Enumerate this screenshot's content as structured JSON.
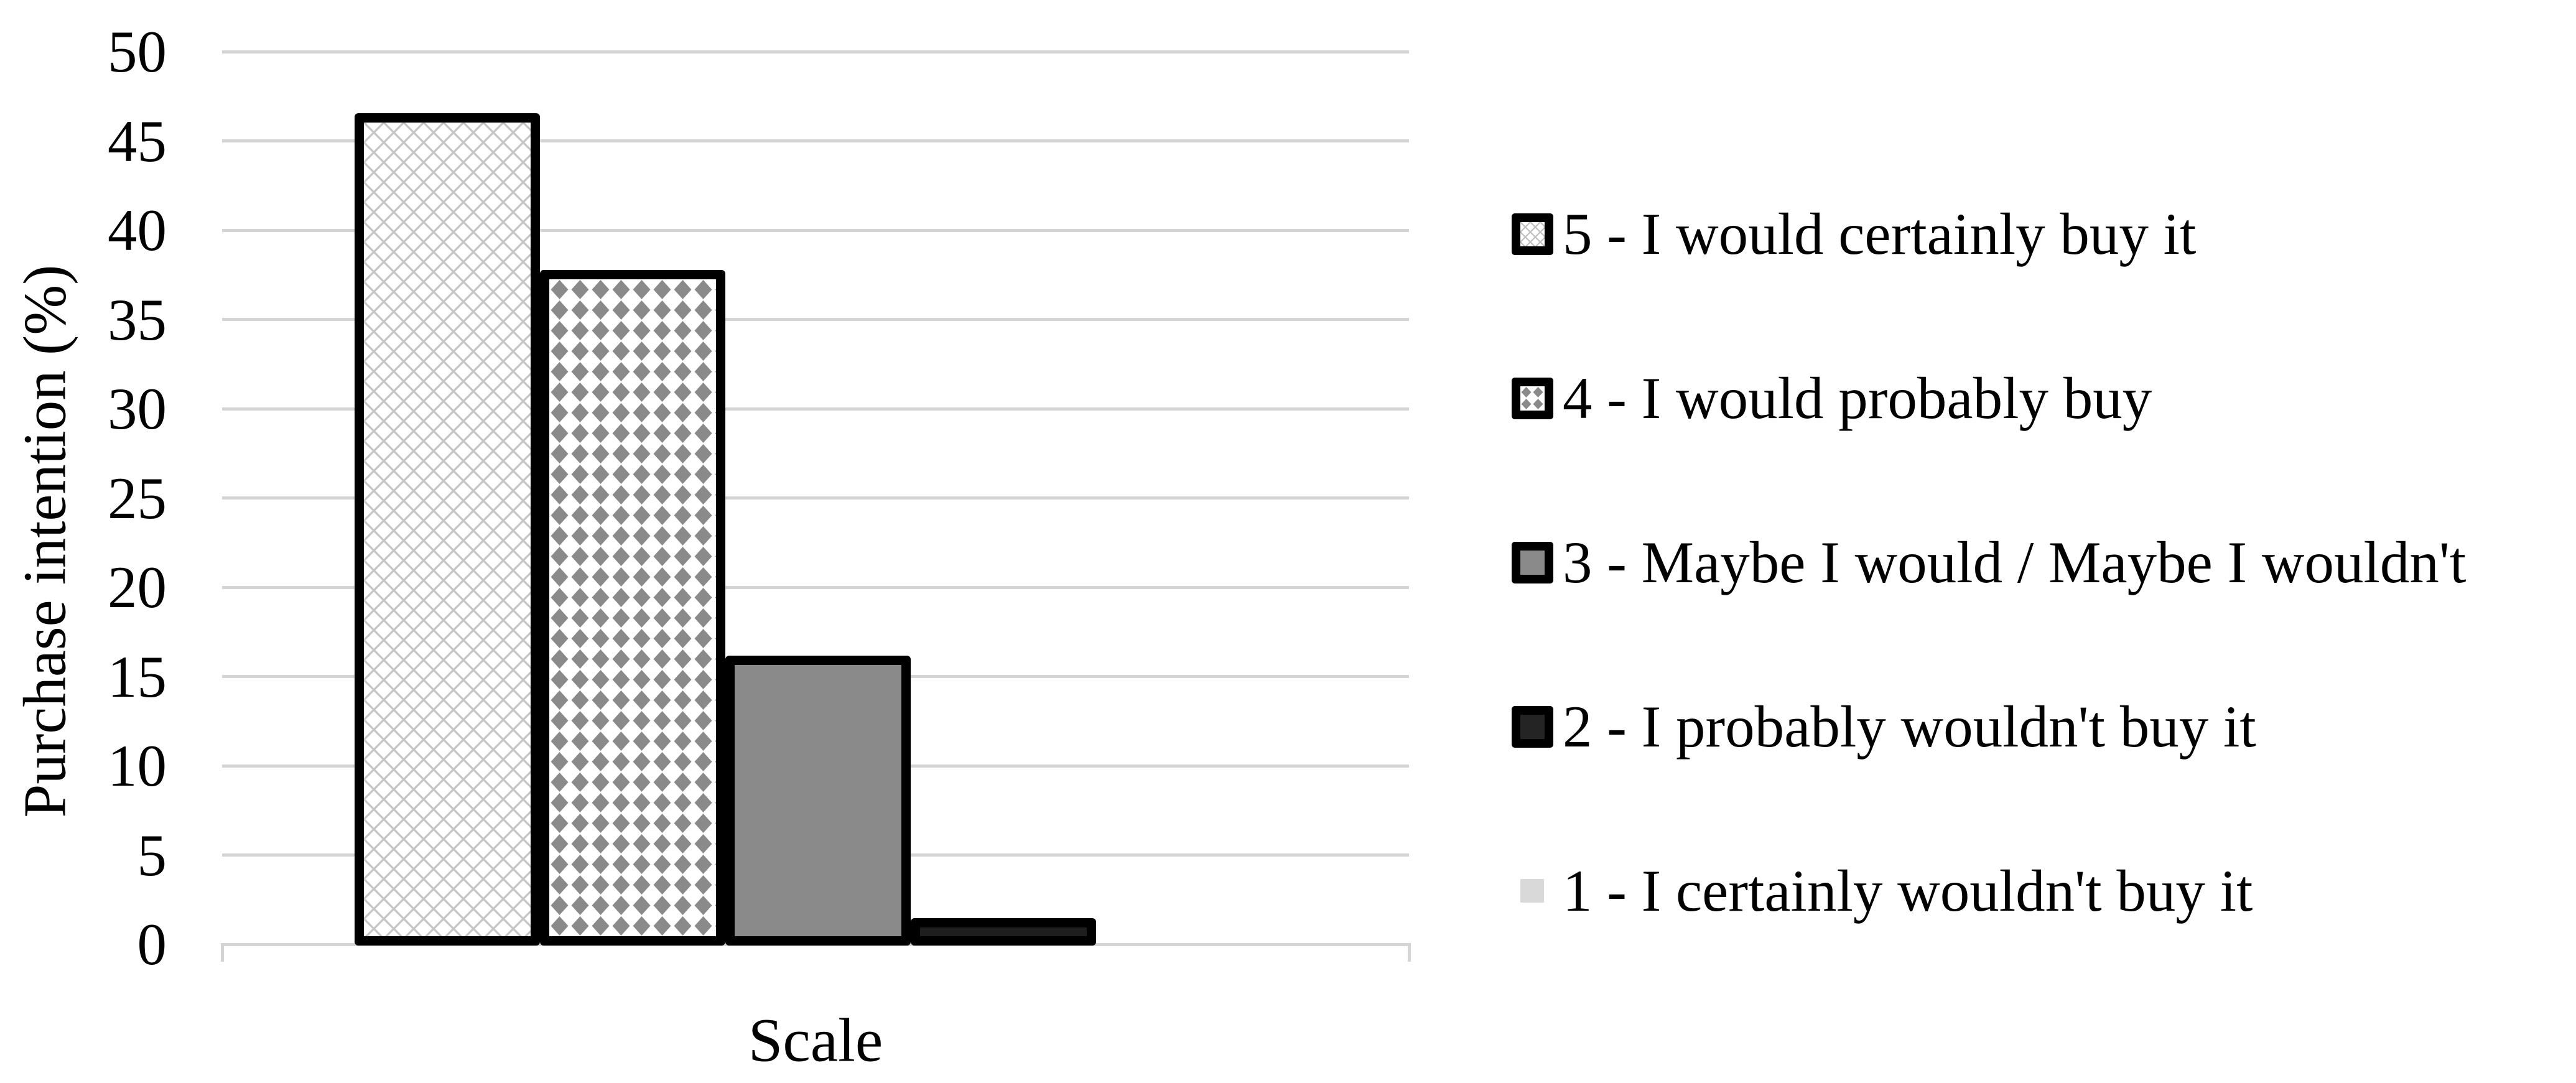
{
  "figure": {
    "y_axis": {
      "title": "Purchase intention (%)",
      "tick_labels": [
        "0",
        "5",
        "10",
        "15",
        "20",
        "25",
        "30",
        "35",
        "40",
        "45",
        "50"
      ]
    },
    "x_axis": {
      "title": "Scale"
    },
    "legend_items": [
      {
        "label": "5 - I would certainly buy it",
        "swatch": "crosshatch"
      },
      {
        "label": "4 - I would probably buy",
        "swatch": "diamonds"
      },
      {
        "label": "3 - Maybe I would / Maybe I wouldn't",
        "swatch": "gray"
      },
      {
        "label": "2 - I probably wouldn't buy it",
        "swatch": "black"
      },
      {
        "label": "1 - I certainly wouldn't buy it",
        "swatch": "lightgray"
      }
    ]
  },
  "chart_data": {
    "type": "bar",
    "title": "",
    "xlabel": "Scale",
    "ylabel": "Purchase intention (%)",
    "ylim": [
      0,
      50
    ],
    "ytick_step": 5,
    "grid": true,
    "legend_position": "right",
    "categories": [
      "Scale"
    ],
    "series": [
      {
        "name": "5 - I would certainly buy it",
        "value": 46.1,
        "pattern": "diagonal-crosshatch",
        "fill": "#ffffff"
      },
      {
        "name": "4 - I would probably buy",
        "value": 37.3,
        "pattern": "gray-diamonds",
        "fill": "#ffffff"
      },
      {
        "name": "3 - Maybe I would / Maybe I wouldn't",
        "value": 15.7,
        "pattern": "solid",
        "fill": "#8a8a8a"
      },
      {
        "name": "2 - I probably wouldn't buy it",
        "value": 1.0,
        "pattern": "solid",
        "fill": "#1e1e1e"
      },
      {
        "name": "1 - I certainly wouldn't buy it",
        "value": 0.0,
        "pattern": "solid",
        "fill": "#d9d9d9"
      }
    ]
  },
  "colors": {
    "gridline": "#d4d4d4",
    "bar_border": "#000000",
    "crosshatch_line": "#c5c5c5",
    "diamond_fill": "#8a8a8a",
    "solid_gray": "#8a8a8a",
    "solid_dark": "#1e1e1e",
    "legend_lightgray": "#d9d9d9",
    "text": "#000000"
  }
}
